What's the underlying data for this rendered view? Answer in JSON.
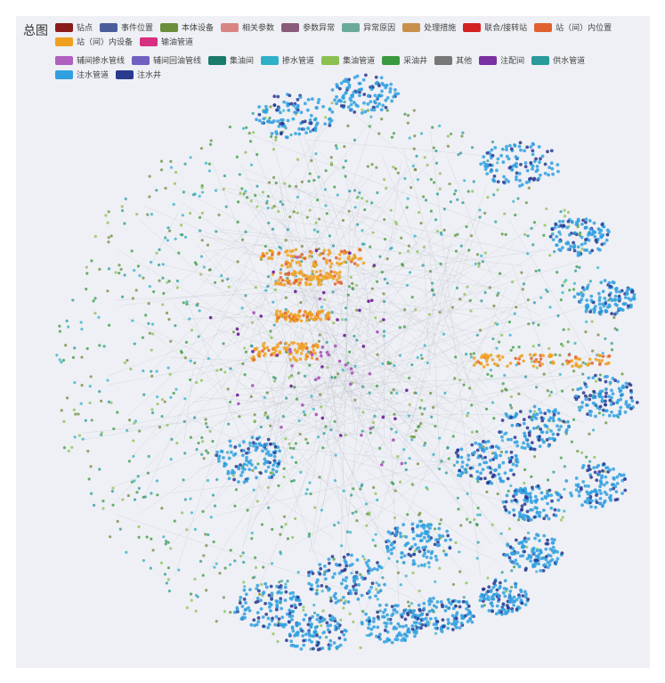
{
  "title": "总图",
  "legend": [
    {
      "label": "钻点",
      "color": "#8b1c1c"
    },
    {
      "label": "事件位置",
      "color": "#4a5f9a"
    },
    {
      "label": "本体设备",
      "color": "#6b8e3a"
    },
    {
      "label": "相关参数",
      "color": "#d98484"
    },
    {
      "label": "参数异常",
      "color": "#8a5a7a"
    },
    {
      "label": "异常原因",
      "color": "#6aaa9a"
    },
    {
      "label": "处理措施",
      "color": "#c8904a"
    },
    {
      "label": "联合/接转站",
      "color": "#d42020"
    },
    {
      "label": "站（间）内位置",
      "color": "#e06030"
    },
    {
      "label": "站（间）内设备",
      "color": "#f0a020"
    },
    {
      "label": "输油管道",
      "color": "#d83080"
    },
    {
      "label": "辅间掺水管线",
      "color": "#b060c0"
    },
    {
      "label": "辅间回油管线",
      "color": "#7060c0"
    },
    {
      "label": "集油间",
      "color": "#1a7a6a"
    },
    {
      "label": "掺水管道",
      "color": "#30b0c8"
    },
    {
      "label": "集油管道",
      "color": "#8cc050"
    },
    {
      "label": "采油井",
      "color": "#3a9a40"
    },
    {
      "label": "其他",
      "color": "#777777"
    },
    {
      "label": "注配间",
      "color": "#7a30a0"
    },
    {
      "label": "供水管道",
      "color": "#2a9a9a"
    },
    {
      "label": "注水管道",
      "color": "#30a0e0"
    },
    {
      "label": "注水井",
      "color": "#2a3a90"
    }
  ]
}
